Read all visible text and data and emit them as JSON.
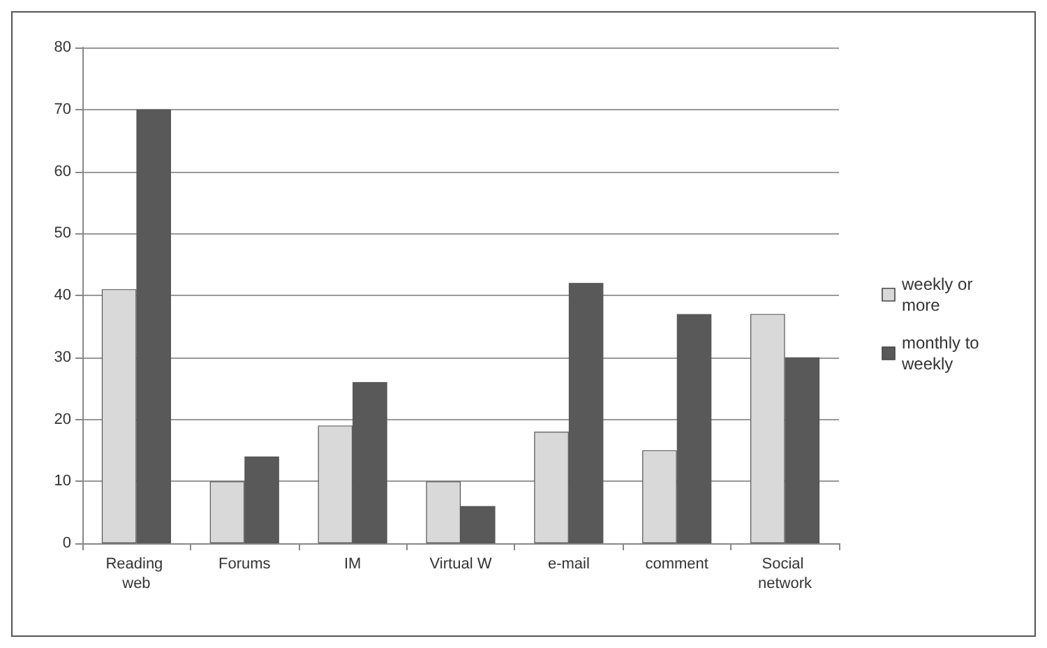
{
  "chart_data": {
    "type": "bar",
    "categories": [
      "Reading web",
      "Forums",
      "IM",
      "Virtual W",
      "e-mail",
      "comment",
      "Social network"
    ],
    "series": [
      {
        "name": "weekly or more",
        "color": "#d9d9d9",
        "values": [
          41,
          10,
          19,
          10,
          18,
          15,
          37
        ]
      },
      {
        "name": "monthly to weekly",
        "color": "#595959",
        "values": [
          70,
          14,
          26,
          6,
          42,
          37,
          30
        ]
      }
    ],
    "ylim": [
      0,
      80
    ],
    "yticks": [
      0,
      10,
      20,
      30,
      40,
      50,
      60,
      70,
      80
    ],
    "grid": "y",
    "legend": "right"
  }
}
